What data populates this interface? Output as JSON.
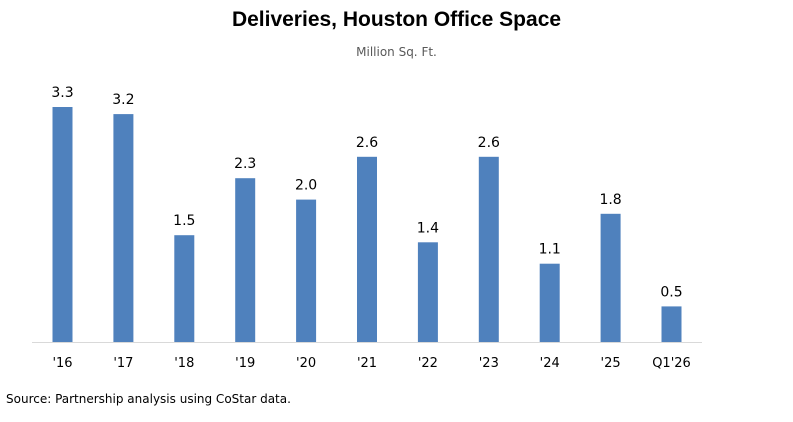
{
  "chart_data": {
    "type": "bar",
    "title": "Deliveries, Houston Office Space",
    "subtitle": "Million Sq. Ft.",
    "xlabel": "",
    "ylabel": "",
    "categories": [
      "'16",
      "'17",
      "'18",
      "'19",
      "'20",
      "'21",
      "'22",
      "'23",
      "'24",
      "'25",
      "Q1'26"
    ],
    "values": [
      3.3,
      3.2,
      1.5,
      2.3,
      2.0,
      2.6,
      1.4,
      2.6,
      1.1,
      1.8,
      0.5
    ],
    "value_labels": [
      "3.3",
      "3.2",
      "1.5",
      "2.3",
      "2.0",
      "2.6",
      "1.4",
      "2.6",
      "1.1",
      "1.8",
      "0.5"
    ],
    "ylim": [
      0,
      3.3
    ],
    "grid": false,
    "legend": "none",
    "bar_color": "#4F81BD",
    "axis_color": "#D9D9D9"
  },
  "footer": {
    "source": "Source: Partnership analysis using CoStar data."
  }
}
